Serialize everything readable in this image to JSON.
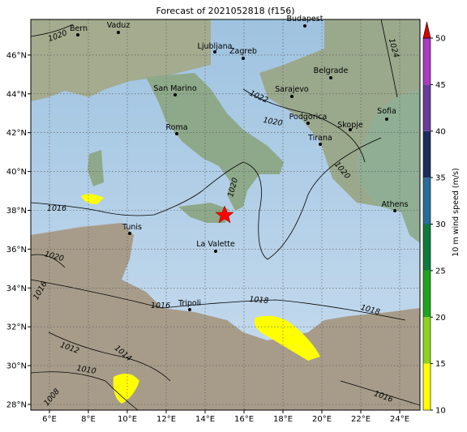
{
  "title": "Forecast of 2021052818 (f156)",
  "lon_labels": [
    "6°E",
    "8°E",
    "10°E",
    "12°E",
    "14°E",
    "16°E",
    "18°E",
    "20°E",
    "22°E",
    "24°E"
  ],
  "lat_labels": [
    "28°N",
    "30°N",
    "32°N",
    "34°N",
    "36°N",
    "38°N",
    "40°N",
    "42°N",
    "44°N",
    "46°N"
  ],
  "cities": [
    "Bern",
    "Vaduz",
    "Budapest",
    "Ljubljana",
    "Zagreb",
    "Belgrade",
    "San Marino",
    "Sarajevo",
    "Podgorica",
    "Sofia",
    "Skopje",
    "Tirana",
    "Roma",
    "Athens",
    "Tunis",
    "La Valette",
    "Tripoli"
  ],
  "isobar_labels": [
    "1020",
    "1024",
    "1022",
    "1020",
    "1020",
    "1020",
    "1016",
    "1020",
    "1016",
    "1016",
    "1018",
    "1018",
    "1012",
    "1014",
    "1010",
    "1008",
    "1016"
  ],
  "colorbar": {
    "label": "10 m wind speed (m/s)",
    "ticks": [
      10,
      15,
      20,
      25,
      30,
      35,
      40,
      45,
      50
    ],
    "colors": [
      "#ffff00",
      "#8fd21e",
      "#1ea51e",
      "#0f7a3c",
      "#2a6e96",
      "#1c2d5a",
      "#6a3c9a",
      "#a93cc0"
    ],
    "extend_color": "#dd0000"
  }
}
